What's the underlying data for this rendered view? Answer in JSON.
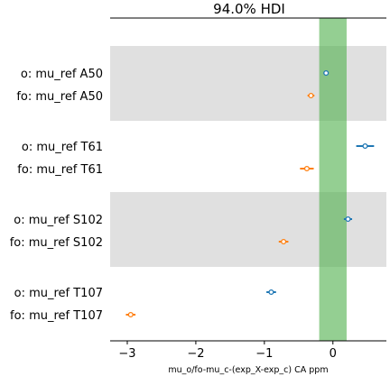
{
  "chart_data": {
    "type": "forest",
    "title": "94.0% HDI",
    "xlabel": "mu_o/fo-mu_c-(exp_X-exp_c) CA ppm",
    "xlim": [
      -3.25,
      0.78
    ],
    "xticks": [
      -3,
      -2,
      -1,
      0
    ],
    "xtick_labels": [
      "−3",
      "−2",
      "−1",
      "0"
    ],
    "reference_band": {
      "from": -0.2,
      "to": 0.2,
      "color": "#4daf4a"
    },
    "colors": {
      "o": "#1f77b4",
      "fo": "#ff7f0e",
      "shade": "#e0e0e0"
    },
    "groups": [
      {
        "name": "A50",
        "shaded": true,
        "rows": [
          {
            "label": "o: mu_ref A50",
            "series": "o",
            "mean": -0.1,
            "hdi_low": -0.12,
            "hdi_high": -0.07
          },
          {
            "label": "fo: mu_ref A50",
            "series": "fo",
            "mean": -0.32,
            "hdi_low": -0.37,
            "hdi_high": -0.27
          }
        ]
      },
      {
        "name": "T61",
        "shaded": false,
        "rows": [
          {
            "label": "o: mu_ref T61",
            "series": "o",
            "mean": 0.47,
            "hdi_low": 0.34,
            "hdi_high": 0.6
          },
          {
            "label": "fo: mu_ref T61",
            "series": "fo",
            "mean": -0.38,
            "hdi_low": -0.48,
            "hdi_high": -0.28
          }
        ]
      },
      {
        "name": "S102",
        "shaded": true,
        "rows": [
          {
            "label": "o: mu_ref S102",
            "series": "o",
            "mean": 0.22,
            "hdi_low": 0.16,
            "hdi_high": 0.28
          },
          {
            "label": "fo: mu_ref S102",
            "series": "fo",
            "mean": -0.72,
            "hdi_low": -0.79,
            "hdi_high": -0.65
          }
        ]
      },
      {
        "name": "T107",
        "shaded": false,
        "rows": [
          {
            "label": "o: mu_ref T107",
            "series": "o",
            "mean": -0.9,
            "hdi_low": -0.97,
            "hdi_high": -0.83
          },
          {
            "label": "fo: mu_ref T107",
            "series": "fo",
            "mean": -2.95,
            "hdi_low": -3.02,
            "hdi_high": -2.88
          }
        ]
      }
    ]
  }
}
